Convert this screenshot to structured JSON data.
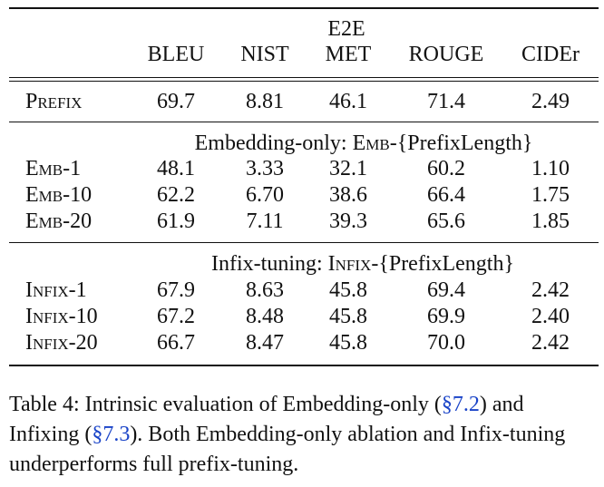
{
  "table": {
    "group_header": "E2E",
    "columns": [
      "BLEU",
      "NIST",
      "MET",
      "ROUGE",
      "CIDEr"
    ],
    "prefix_row": {
      "label": "Prefix",
      "values": [
        "69.7",
        "8.81",
        "46.1",
        "71.4",
        "2.49"
      ]
    },
    "emb_section": {
      "title_prefix": "Embedding-only: ",
      "title_sc": "Emb",
      "title_suffix": "-{PrefixLength}",
      "rows": [
        {
          "label": "Emb-1",
          "values": [
            "48.1",
            "3.33",
            "32.1",
            "60.2",
            "1.10"
          ]
        },
        {
          "label": "Emb-10",
          "values": [
            "62.2",
            "6.70",
            "38.6",
            "66.4",
            "1.75"
          ]
        },
        {
          "label": "Emb-20",
          "values": [
            "61.9",
            "7.11",
            "39.3",
            "65.6",
            "1.85"
          ]
        }
      ]
    },
    "infix_section": {
      "title_prefix": "Infix-tuning: ",
      "title_sc": "Infix",
      "title_suffix": "-{PrefixLength}",
      "rows": [
        {
          "label": "Infix-1",
          "values": [
            "67.9",
            "8.63",
            "45.8",
            "69.4",
            "2.42"
          ]
        },
        {
          "label": "Infix-10",
          "values": [
            "67.2",
            "8.48",
            "45.8",
            "69.9",
            "2.40"
          ]
        },
        {
          "label": "Infix-20",
          "values": [
            "66.7",
            "8.47",
            "45.8",
            "70.0",
            "2.42"
          ]
        }
      ]
    }
  },
  "caption": {
    "p1": "Table 4:  Intrinsic evaluation of Embedding-only (",
    "ref1": "§7.2",
    "p2": ") and Infixing (",
    "ref2": "§7.3",
    "p3": "). Both Embedding-only ablation and Infix-tuning underperforms full prefix-tuning."
  }
}
